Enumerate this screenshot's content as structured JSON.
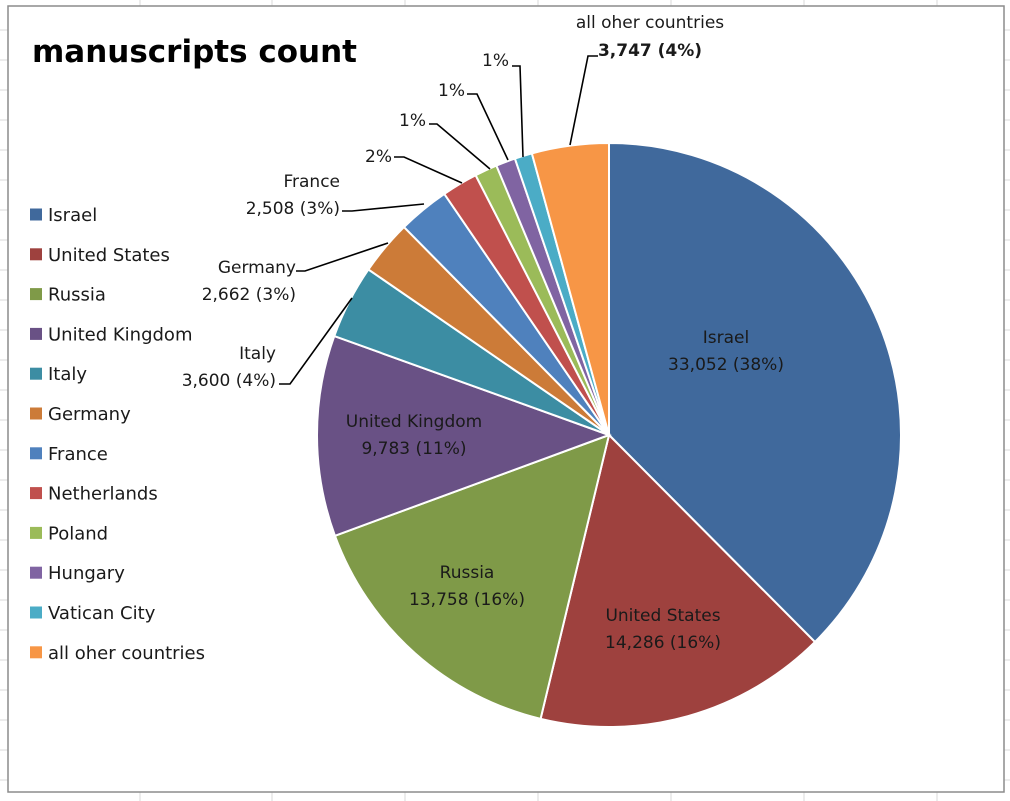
{
  "chart_data": {
    "type": "pie",
    "title": "manuscripts count",
    "legend_position": "left",
    "categories": [
      "Israel",
      "United States",
      "Russia",
      "United Kingdom",
      "Italy",
      "Germany",
      "France",
      "Netherlands",
      "Poland",
      "Hungary",
      "Vatican City",
      "all oher countries"
    ],
    "values": [
      33052,
      14286,
      13758,
      9783,
      3600,
      2662,
      2508,
      1750,
      1100,
      950,
      850,
      3747
    ],
    "colors": [
      "#40699c",
      "#9e413e",
      "#7f9a48",
      "#695185",
      "#3c8da3",
      "#cc7b38",
      "#4f81bd",
      "#c0504d",
      "#9bbb59",
      "#8064a2",
      "#4bacc6",
      "#f79646"
    ],
    "data_labels": [
      {
        "category": "Israel",
        "line1": "Israel",
        "line2": "33,052 (38%)"
      },
      {
        "category": "United States",
        "line1": "United States",
        "line2": "14,286 (16%)"
      },
      {
        "category": "Russia",
        "line1": "Russia",
        "line2": "13,758 (16%)"
      },
      {
        "category": "United Kingdom",
        "line1": "United Kingdom",
        "line2": "9,783 (11%)"
      },
      {
        "category": "Italy",
        "line1": "Italy",
        "line2": "3,600 (4%)"
      },
      {
        "category": "Germany",
        "line1": "Germany",
        "line2": "2,662 (3%)"
      },
      {
        "category": "France",
        "line1": "France",
        "line2": "2,508 (3%)"
      },
      {
        "category": "Netherlands",
        "line1": "",
        "line2": "2%"
      },
      {
        "category": "Poland",
        "line1": "",
        "line2": "1%"
      },
      {
        "category": "Hungary",
        "line1": "",
        "line2": "1%"
      },
      {
        "category": "Vatican City",
        "line1": "",
        "line2": "1%"
      },
      {
        "category": "all oher countries",
        "line1": "all oher countries",
        "line2": "3,747 (4%)"
      }
    ]
  }
}
